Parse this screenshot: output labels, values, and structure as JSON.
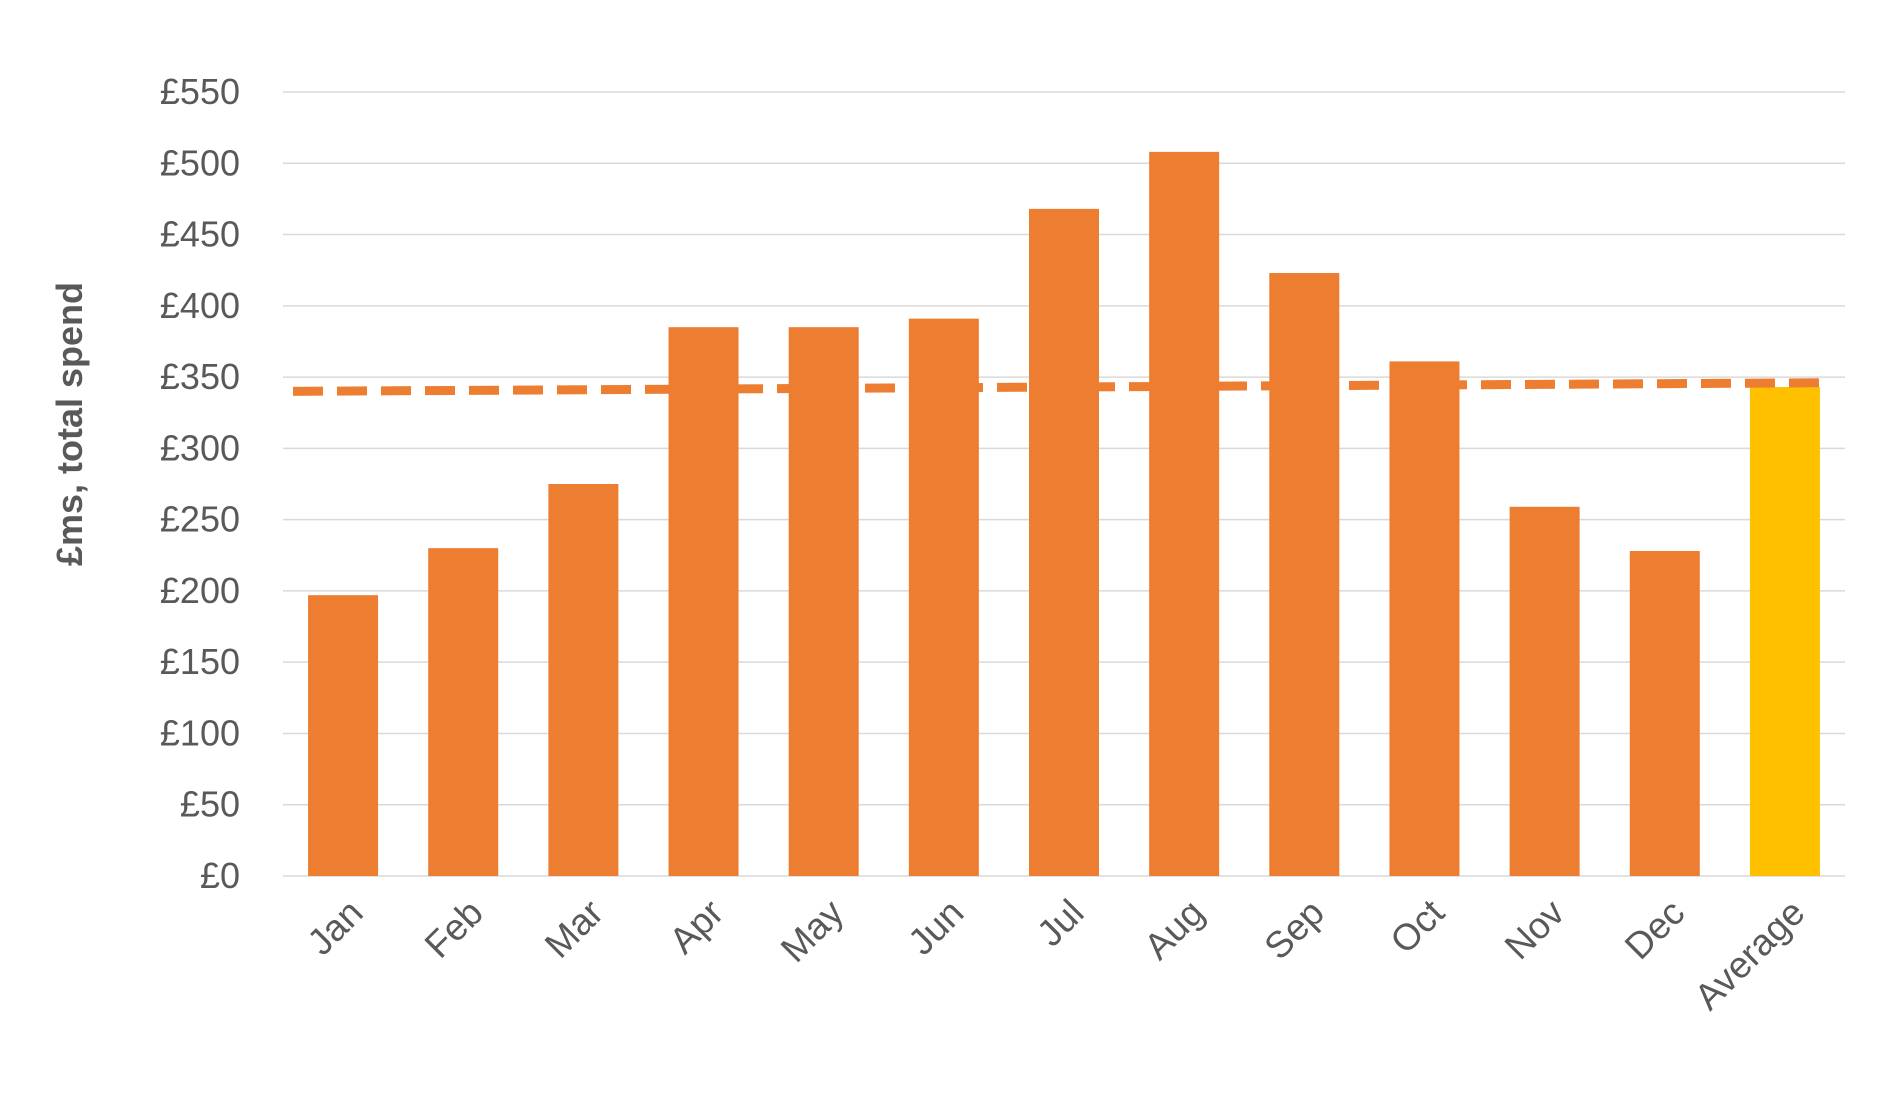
{
  "chart_data": {
    "type": "bar",
    "title": "",
    "xlabel": "",
    "ylabel": "£ms, total spend",
    "categories": [
      "Jan",
      "Feb",
      "Mar",
      "Apr",
      "May",
      "Jun",
      "Jul",
      "Aug",
      "Sep",
      "Oct",
      "Nov",
      "Dec",
      "Average"
    ],
    "values": [
      197,
      230,
      275,
      385,
      385,
      391,
      468,
      508,
      423,
      361,
      259,
      228,
      343
    ],
    "ylim": [
      0,
      550
    ],
    "yticks": [
      0,
      50,
      100,
      150,
      200,
      250,
      300,
      350,
      400,
      450,
      500,
      550
    ],
    "ytick_labels": [
      "£0",
      "£50",
      "£100",
      "£150",
      "£200",
      "£250",
      "£300",
      "£350",
      "£400",
      "£450",
      "£500",
      "£550"
    ],
    "average_line": {
      "start_value": 340,
      "end_value": 346,
      "style": "dashed"
    },
    "grid": true,
    "legend": "none",
    "colors": {
      "bar": "#ED7D31",
      "average_bar": "#FFC000",
      "average_line": "#ED7D31",
      "grid": "#D9D9D9",
      "text": "#595959"
    }
  }
}
